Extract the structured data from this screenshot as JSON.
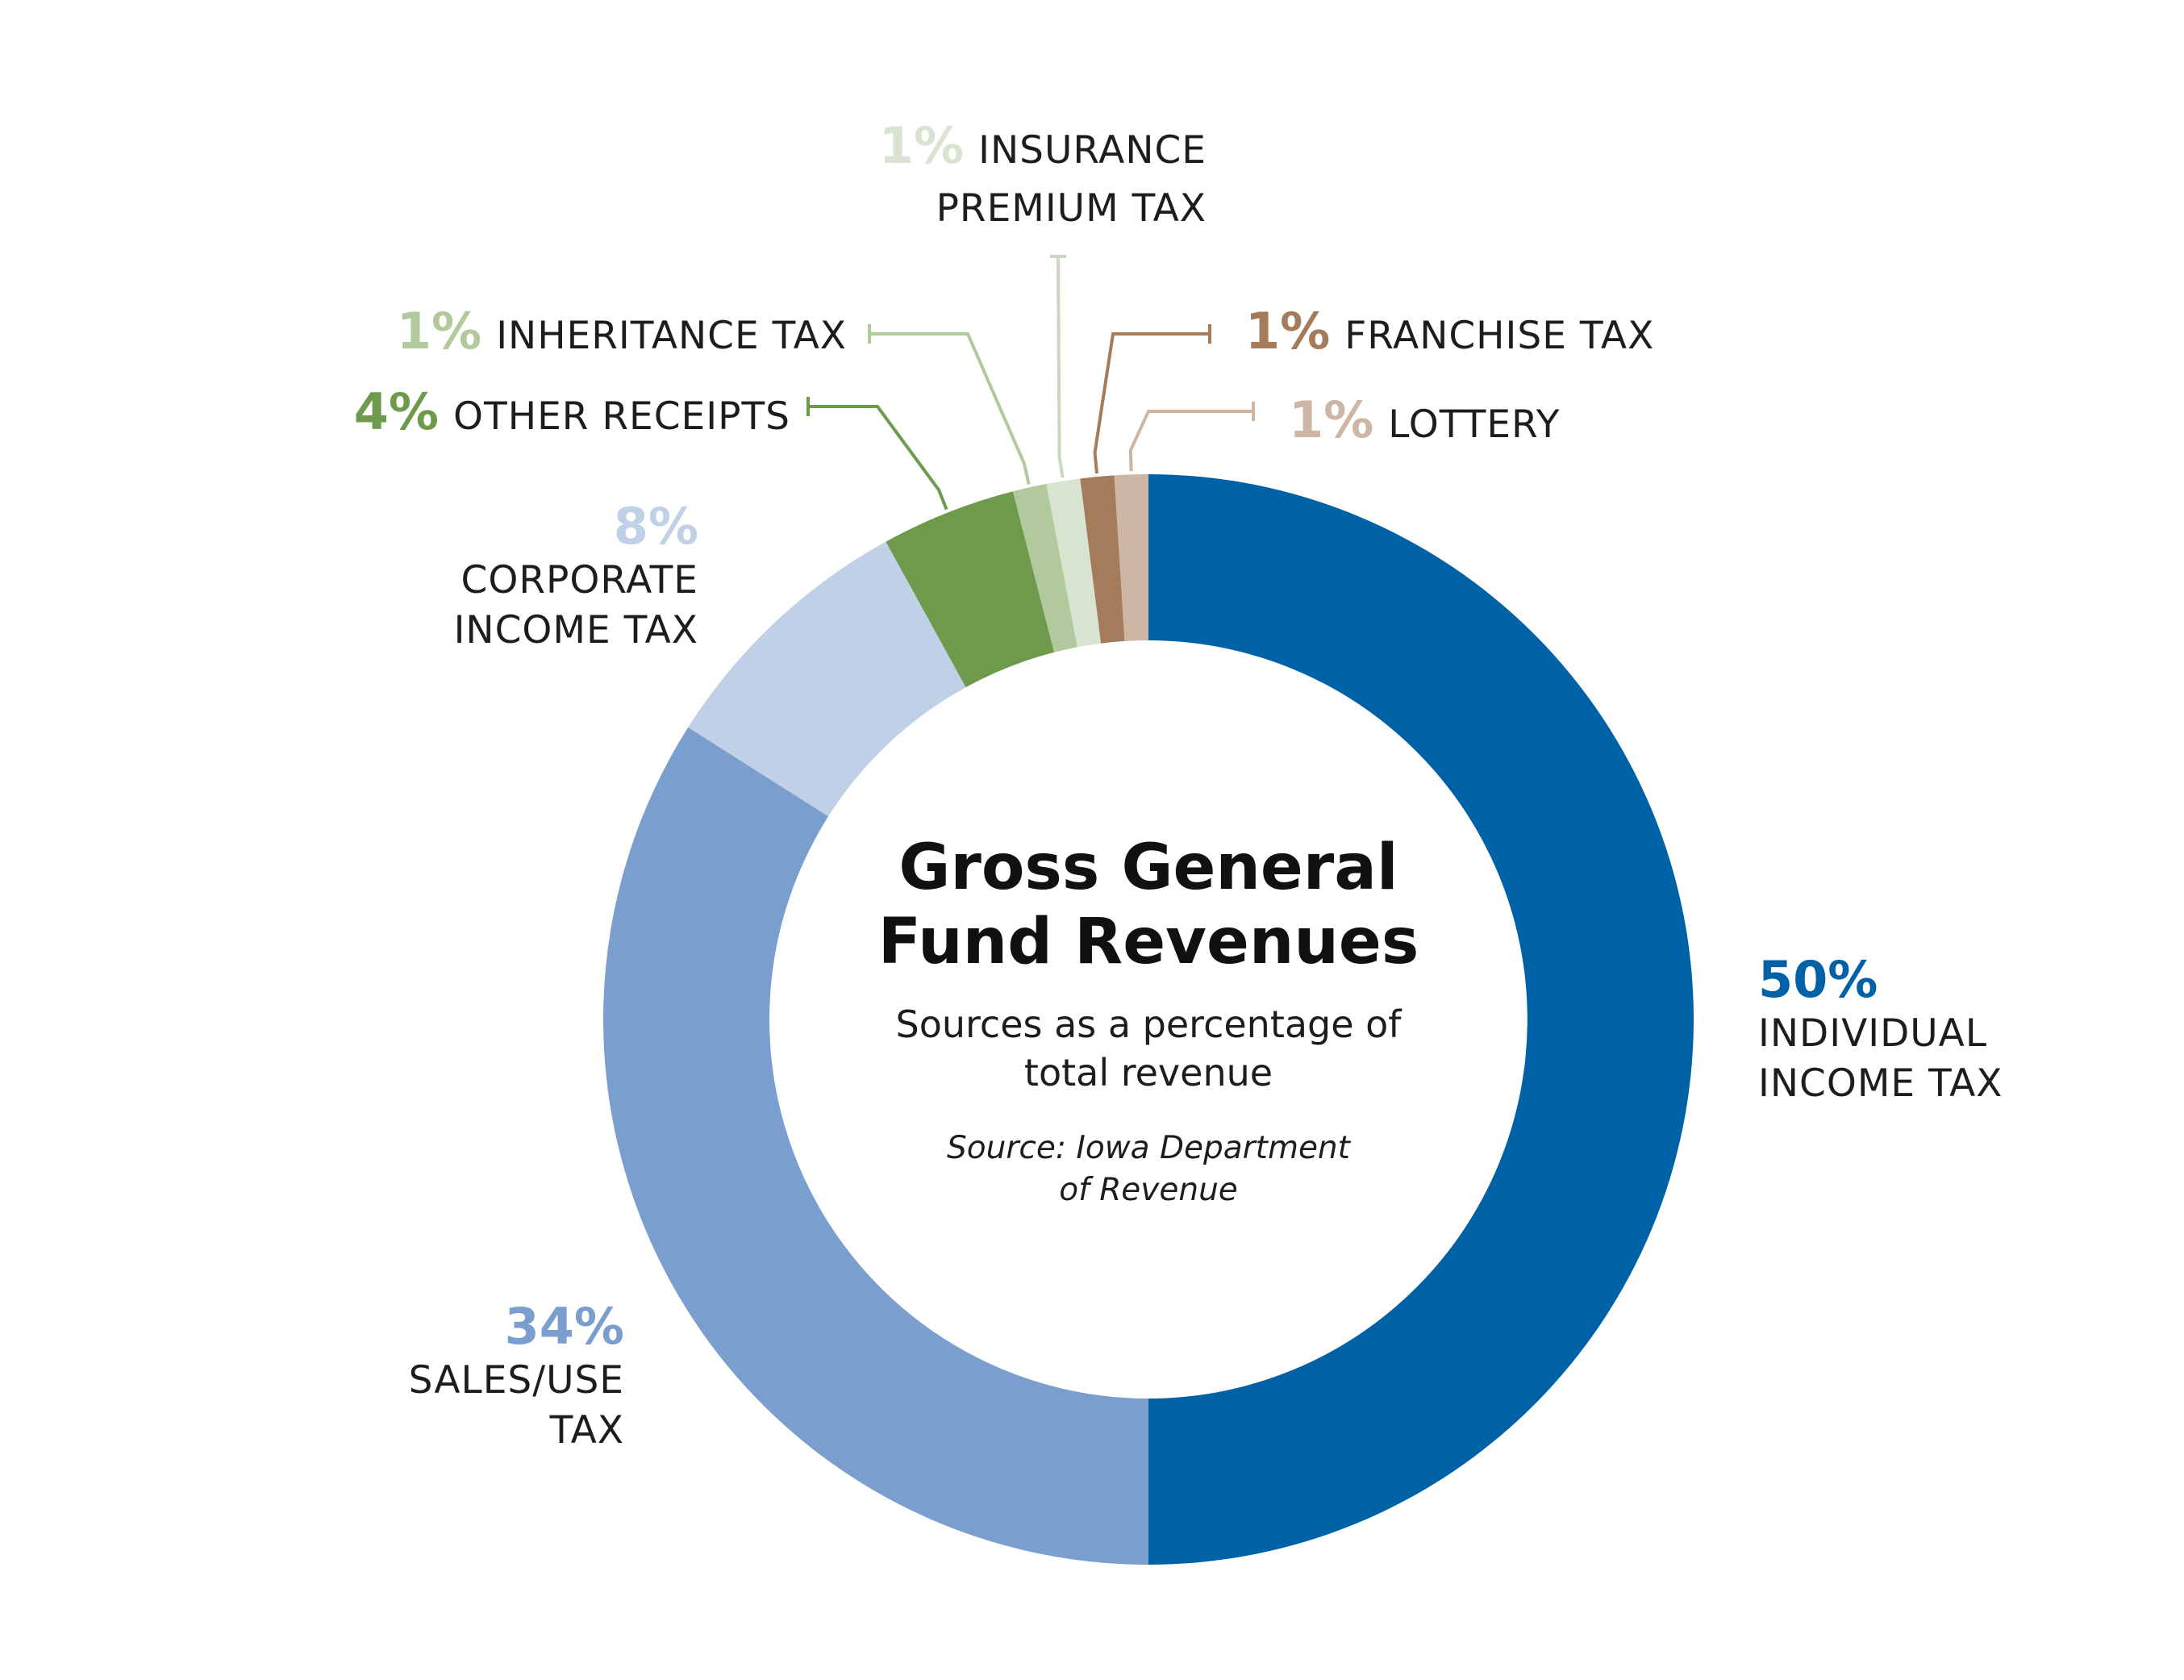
{
  "chart_data": {
    "type": "pie",
    "style": "donut",
    "title_line1": "Gross General",
    "title_line2": "Fund Revenues",
    "subtitle_line1": "Sources as a percentage of",
    "subtitle_line2": "total revenue",
    "source_line1": "Source: Iowa Department",
    "source_line2": "of Revenue",
    "slices": [
      {
        "pct_label": "50%",
        "name_lines": [
          "INDIVIDUAL",
          "INCOME TAX"
        ],
        "value": 50,
        "color": "#0062a6"
      },
      {
        "pct_label": "34%",
        "name_lines": [
          "SALES/USE",
          "TAX"
        ],
        "value": 34,
        "color": "#7a9ecd"
      },
      {
        "pct_label": "8%",
        "name_lines": [
          "CORPORATE",
          "INCOME TAX"
        ],
        "value": 8,
        "color": "#c0d0e7"
      },
      {
        "pct_label": "4%",
        "name_lines": [
          "OTHER RECEIPTS"
        ],
        "value": 4,
        "color": "#6d9a4b"
      },
      {
        "pct_label": "1%",
        "name_lines": [
          "INHERITANCE TAX"
        ],
        "value": 1,
        "color": "#b1c99c"
      },
      {
        "pct_label": "1%",
        "name_lines": [
          "INSURANCE",
          "PREMIUM TAX"
        ],
        "value": 1,
        "color": "#d8e4d0"
      },
      {
        "pct_label": "1%",
        "name_lines": [
          "FRANCHISE TAX"
        ],
        "value": 1,
        "color": "#a47c5b"
      },
      {
        "pct_label": "1%",
        "name_lines": [
          "LOTTERY"
        ],
        "value": 1,
        "color": "#cdb6a4"
      }
    ]
  }
}
